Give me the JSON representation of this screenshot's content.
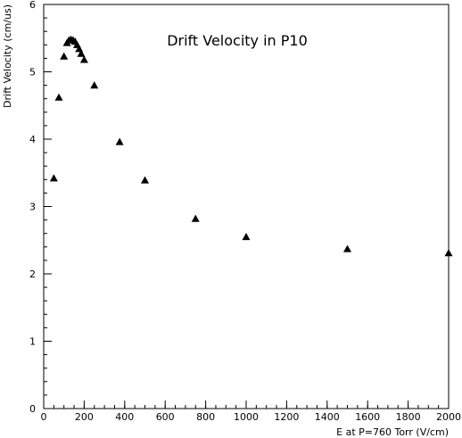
{
  "chart_data": {
    "type": "scatter",
    "title": "Drift Velocity in P10",
    "xlabel": "E at P=760 Torr (V/cm)",
    "ylabel": "Drift Velocity (cm/us)",
    "xlim": [
      0,
      2000
    ],
    "ylim": [
      0,
      6
    ],
    "x_major_ticks": [
      0,
      200,
      400,
      600,
      800,
      1000,
      1200,
      1400,
      1600,
      1800,
      2000
    ],
    "y_major_ticks": [
      0,
      1,
      2,
      3,
      4,
      5,
      6
    ],
    "x_tick_labels": [
      "0",
      "200",
      "400",
      "600",
      "800",
      "1000",
      "1200",
      "1400",
      "1600",
      "1800",
      "2000"
    ],
    "y_tick_labels": [
      "0",
      "1",
      "2",
      "3",
      "4",
      "5",
      "6"
    ],
    "grid": false,
    "marker": "triangle",
    "series": [
      {
        "points": [
          {
            "x": 50,
            "y": 3.42
          },
          {
            "x": 75,
            "y": 4.62
          },
          {
            "x": 100,
            "y": 5.23
          },
          {
            "x": 115,
            "y": 5.43
          },
          {
            "x": 125,
            "y": 5.47
          },
          {
            "x": 135,
            "y": 5.48
          },
          {
            "x": 145,
            "y": 5.47
          },
          {
            "x": 155,
            "y": 5.45
          },
          {
            "x": 165,
            "y": 5.4
          },
          {
            "x": 175,
            "y": 5.34
          },
          {
            "x": 185,
            "y": 5.27
          },
          {
            "x": 200,
            "y": 5.18
          },
          {
            "x": 250,
            "y": 4.8
          },
          {
            "x": 375,
            "y": 3.96
          },
          {
            "x": 500,
            "y": 3.39
          },
          {
            "x": 750,
            "y": 2.82
          },
          {
            "x": 1000,
            "y": 2.55
          },
          {
            "x": 1500,
            "y": 2.37
          },
          {
            "x": 2000,
            "y": 2.31
          }
        ]
      }
    ]
  }
}
